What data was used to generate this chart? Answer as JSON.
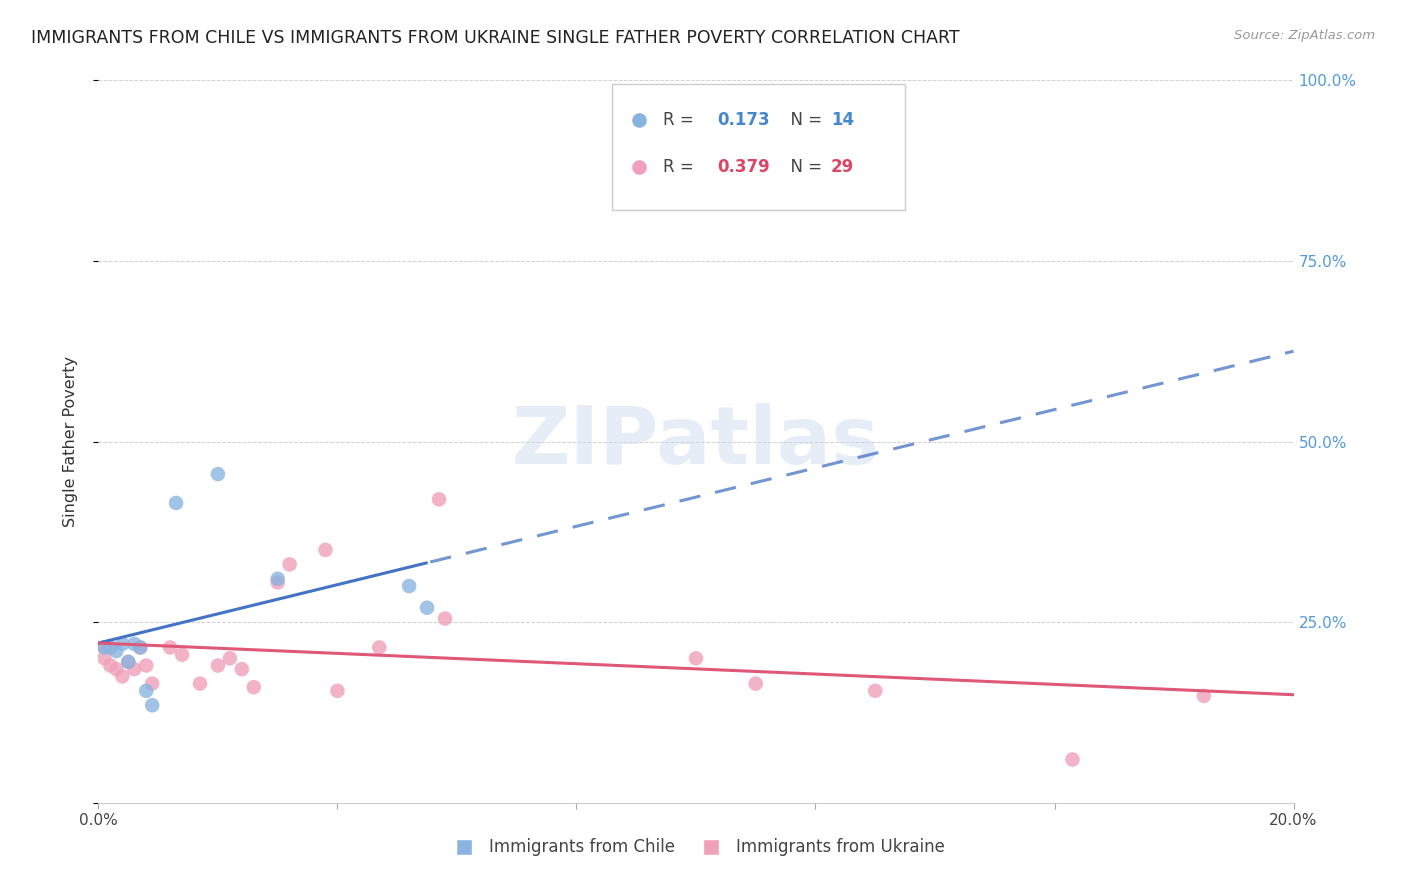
{
  "title": "IMMIGRANTS FROM CHILE VS IMMIGRANTS FROM UKRAINE SINGLE FATHER POVERTY CORRELATION CHART",
  "source": "Source: ZipAtlas.com",
  "ylabel": "Single Father Poverty",
  "legend_label1": "Immigrants from Chile",
  "legend_label2": "Immigrants from Ukraine",
  "R1": 0.173,
  "N1": 14,
  "R2": 0.379,
  "N2": 29,
  "color_chile": "#8ab4e0",
  "color_ukraine": "#f0a0b8",
  "trendline_chile_color": "#4472c4",
  "trendline_ukraine_color": "#e05878",
  "xlim": [
    0.0,
    0.2
  ],
  "ylim": [
    0.0,
    1.0
  ],
  "watermark": "ZIPatlas",
  "chile_x": [
    0.001,
    0.002,
    0.003,
    0.004,
    0.005,
    0.006,
    0.007,
    0.008,
    0.009,
    0.013,
    0.02,
    0.03,
    0.052,
    0.055
  ],
  "chile_y": [
    0.215,
    0.215,
    0.21,
    0.22,
    0.195,
    0.22,
    0.215,
    0.155,
    0.135,
    0.415,
    0.455,
    0.31,
    0.3,
    0.27
  ],
  "ukraine_x": [
    0.001,
    0.001,
    0.002,
    0.003,
    0.004,
    0.005,
    0.006,
    0.007,
    0.008,
    0.009,
    0.012,
    0.014,
    0.017,
    0.02,
    0.022,
    0.024,
    0.026,
    0.03,
    0.032,
    0.038,
    0.04,
    0.047,
    0.057,
    0.058,
    0.1,
    0.11,
    0.13,
    0.163,
    0.185
  ],
  "ukraine_y": [
    0.215,
    0.2,
    0.19,
    0.185,
    0.175,
    0.195,
    0.185,
    0.215,
    0.19,
    0.165,
    0.215,
    0.205,
    0.165,
    0.19,
    0.2,
    0.185,
    0.16,
    0.305,
    0.33,
    0.35,
    0.155,
    0.215,
    0.42,
    0.255,
    0.2,
    0.165,
    0.155,
    0.06,
    0.148
  ]
}
